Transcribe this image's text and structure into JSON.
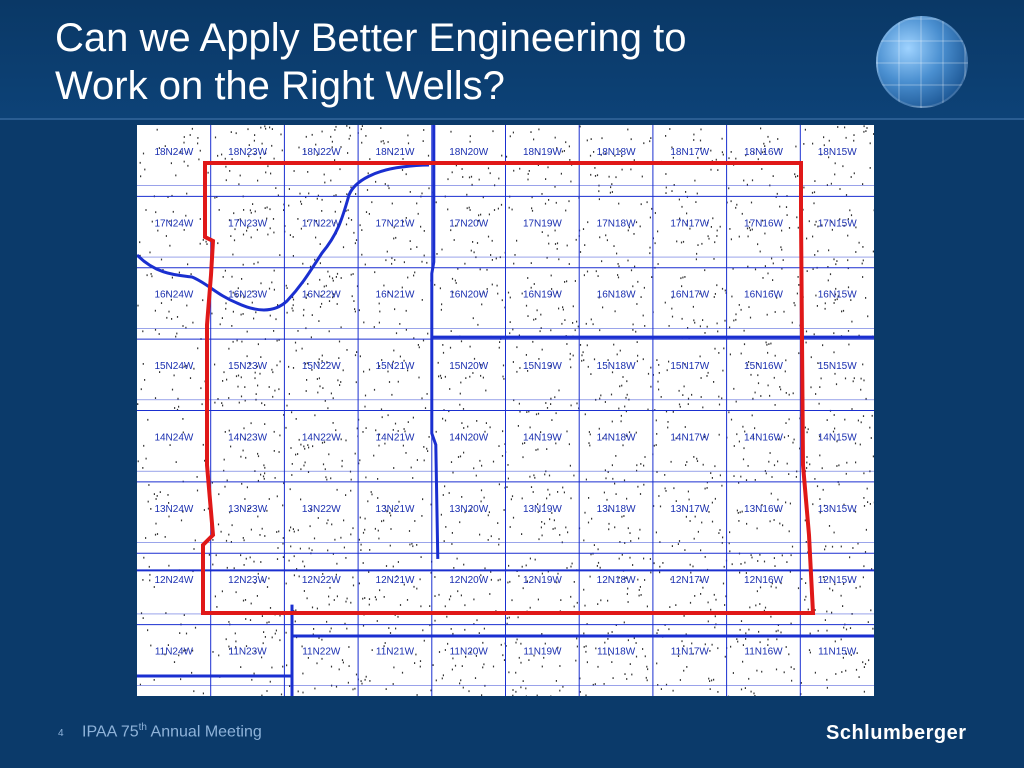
{
  "slide": {
    "title_line1": "Can we Apply Better Engineering to",
    "title_line2": "Work on the Right Wells?",
    "page_number": "4",
    "meeting_prefix": "IPAA 75",
    "meeting_sup": "th",
    "meeting_suffix": " Annual Meeting",
    "brand": "Schlumberger"
  },
  "colors": {
    "background": "#0b3a6a",
    "grid_blue": "#1a2fd0",
    "aoi_red": "#e01818",
    "label_blue": "#1a2fb0"
  },
  "icons": [
    "globe-logo-icon"
  ],
  "map": {
    "township_rows": [
      "18N",
      "17N",
      "16N",
      "15N",
      "14N",
      "13N",
      "12N",
      "11N"
    ],
    "range_cols": [
      "24W",
      "23W",
      "22W",
      "21W",
      "20W",
      "19W",
      "18W",
      "17W",
      "16W",
      "15W"
    ],
    "labels": [
      [
        "18N24W",
        "18N23W",
        "18N22W",
        "18N21W",
        "18N20W",
        "18N19W",
        "18N18W",
        "18N17W",
        "18N16W",
        "18N15W"
      ],
      [
        "17N24W",
        "17N23W",
        "17N22W",
        "17N21W",
        "17N20W",
        "17N19W",
        "17N18W",
        "17N17W",
        "17N16W",
        "17N15W"
      ],
      [
        "16N24W",
        "16N23W",
        "16N22W",
        "16N21W",
        "16N20W",
        "16N19W",
        "16N18W",
        "16N17W",
        "16N16W",
        "16N15W"
      ],
      [
        "15N24W",
        "15N23W",
        "15N22W",
        "15N21W",
        "15N20W",
        "15N19W",
        "15N18W",
        "15N17W",
        "15N16W",
        "15N15W"
      ],
      [
        "14N24W",
        "14N23W",
        "14N22W",
        "14N21W",
        "14N20W",
        "14N19W",
        "14N18W",
        "14N17W",
        "14N16W",
        "14N15W"
      ],
      [
        "13N24W",
        "13N23W",
        "13N22W",
        "13N21W",
        "13N20W",
        "13N19W",
        "13N18W",
        "13N17W",
        "13N16W",
        "13N15W"
      ],
      [
        "12N24W",
        "12N23W",
        "12N22W",
        "12N21W",
        "12N20W",
        "12N19W",
        "12N18W",
        "12N17W",
        "12N16W",
        "12N15W"
      ],
      [
        "11N24W",
        "11N23W",
        "11N22W",
        "11N21W",
        "11N20W",
        "11N19W",
        "11N18W",
        "11N17W",
        "11N16W",
        "11N15W"
      ]
    ]
  }
}
